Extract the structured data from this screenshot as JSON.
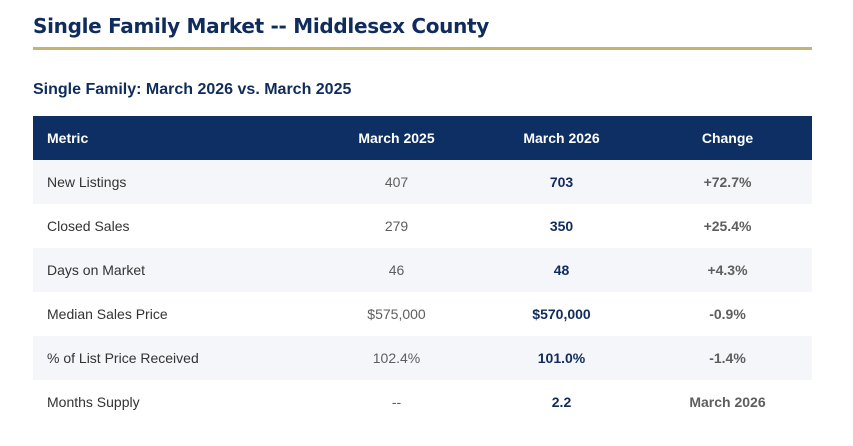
{
  "page": {
    "title": "Single Family Market -- Middlesex County",
    "subtitle": "Single Family: March 2026 vs. March 2025"
  },
  "colors": {
    "title_text": "#102c5c",
    "rule": "#c8b273",
    "header_bg": "#0d2f63",
    "positive": "#1e7b34",
    "negative": "#c0392b",
    "neutral": "#555555"
  },
  "table": {
    "headers": {
      "metric": "Metric",
      "prior": "March 2025",
      "current": "March 2026",
      "change": "Change"
    },
    "rows": [
      {
        "metric": "New Listings",
        "prior": "407",
        "current": "703",
        "change": "+72.7%",
        "change_tone": "positive"
      },
      {
        "metric": "Closed Sales",
        "prior": "279",
        "current": "350",
        "change": "+25.4%",
        "change_tone": "positive"
      },
      {
        "metric": "Days on Market",
        "prior": "46",
        "current": "48",
        "change": "+4.3%",
        "change_tone": "negative"
      },
      {
        "metric": "Median Sales Price",
        "prior": "$575,000",
        "current": "$570,000",
        "change": "-0.9%",
        "change_tone": "neutral"
      },
      {
        "metric": "% of List Price Received",
        "prior": "102.4%",
        "current": "101.0%",
        "change": "-1.4%",
        "change_tone": "negative"
      },
      {
        "metric": "Months Supply",
        "prior": "--",
        "current": "2.2",
        "change": "March 2026",
        "change_tone": "neutral"
      }
    ]
  }
}
